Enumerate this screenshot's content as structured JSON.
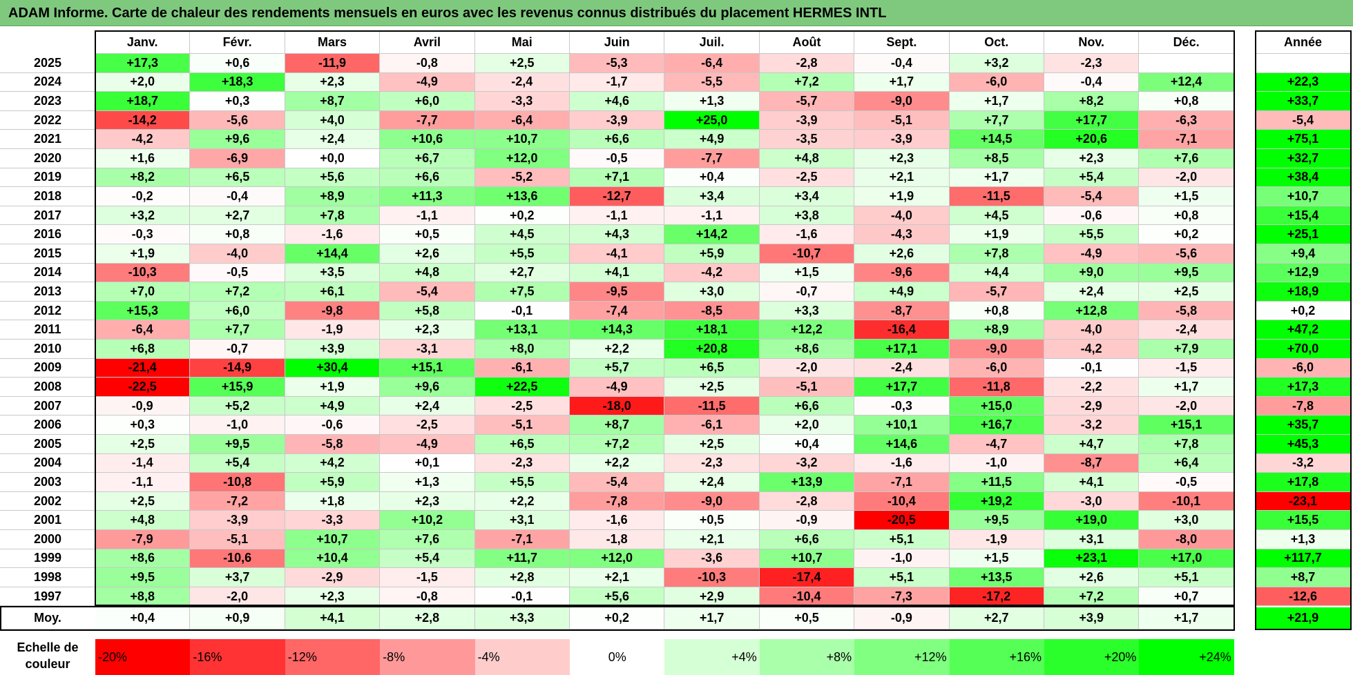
{
  "title": "ADAM Informe. Carte de chaleur des rendements mensuels en euros avec les revenus connus distribués du placement HERMES INTL",
  "chart_data": {
    "type": "heatmap",
    "title": "ADAM Informe. Carte de chaleur des rendements mensuels en euros avec les revenus connus distribués du placement HERMES INTL",
    "months": [
      "Janv.",
      "Févr.",
      "Mars",
      "Avril",
      "Mai",
      "Juin",
      "Juil.",
      "Août",
      "Sept.",
      "Oct.",
      "Nov.",
      "Déc."
    ],
    "year_header": "Année",
    "avg_label": "Moy.",
    "rows": [
      {
        "year": "2025",
        "months": [
          "+17,3",
          "+0,6",
          "-11,9",
          "-0,8",
          "+2,5",
          "-5,3",
          "-6,4",
          "-2,8",
          "-0,4",
          "+3,2",
          "-2,3",
          ""
        ],
        "annual": ""
      },
      {
        "year": "2024",
        "months": [
          "+2,0",
          "+18,3",
          "+2,3",
          "-4,9",
          "-2,4",
          "-1,7",
          "-5,5",
          "+7,2",
          "+1,7",
          "-6,0",
          "-0,4",
          "+12,4"
        ],
        "annual": "+22,3"
      },
      {
        "year": "2023",
        "months": [
          "+18,7",
          "+0,3",
          "+8,7",
          "+6,0",
          "-3,3",
          "+4,6",
          "+1,3",
          "-5,7",
          "-9,0",
          "+1,7",
          "+8,2",
          "+0,8"
        ],
        "annual": "+33,7"
      },
      {
        "year": "2022",
        "months": [
          "-14,2",
          "-5,6",
          "+4,0",
          "-7,7",
          "-6,4",
          "-3,9",
          "+25,0",
          "-3,9",
          "-5,1",
          "+7,7",
          "+17,7",
          "-6,3"
        ],
        "annual": "-5,4"
      },
      {
        "year": "2021",
        "months": [
          "-4,2",
          "+9,6",
          "+2,4",
          "+10,6",
          "+10,7",
          "+6,6",
          "+4,9",
          "-3,5",
          "-3,9",
          "+14,5",
          "+20,6",
          "-7,1"
        ],
        "annual": "+75,1"
      },
      {
        "year": "2020",
        "months": [
          "+1,6",
          "-6,9",
          "+0,0",
          "+6,7",
          "+12,0",
          "-0,5",
          "-7,7",
          "+4,8",
          "+2,3",
          "+8,5",
          "+2,3",
          "+7,6"
        ],
        "annual": "+32,7"
      },
      {
        "year": "2019",
        "months": [
          "+8,2",
          "+6,5",
          "+5,6",
          "+6,6",
          "-5,2",
          "+7,1",
          "+0,4",
          "-2,5",
          "+2,1",
          "+1,7",
          "+5,4",
          "-2,0"
        ],
        "annual": "+38,4"
      },
      {
        "year": "2018",
        "months": [
          "-0,2",
          "-0,4",
          "+8,9",
          "+11,3",
          "+13,6",
          "-12,7",
          "+3,4",
          "+3,4",
          "+1,9",
          "-11,5",
          "-5,4",
          "+1,5"
        ],
        "annual": "+10,7"
      },
      {
        "year": "2017",
        "months": [
          "+3,2",
          "+2,7",
          "+7,8",
          "-1,1",
          "+0,2",
          "-1,1",
          "-1,1",
          "+3,8",
          "-4,0",
          "+4,5",
          "-0,6",
          "+0,8"
        ],
        "annual": "+15,4"
      },
      {
        "year": "2016",
        "months": [
          "-0,3",
          "+0,8",
          "-1,6",
          "+0,5",
          "+4,5",
          "+4,3",
          "+14,2",
          "-1,6",
          "-4,3",
          "+1,9",
          "+5,5",
          "+0,2"
        ],
        "annual": "+25,1"
      },
      {
        "year": "2015",
        "months": [
          "+1,9",
          "-4,0",
          "+14,4",
          "+2,6",
          "+5,5",
          "-4,1",
          "+5,9",
          "-10,7",
          "+2,6",
          "+7,8",
          "-4,9",
          "-5,6"
        ],
        "annual": "+9,4"
      },
      {
        "year": "2014",
        "months": [
          "-10,3",
          "-0,5",
          "+3,5",
          "+4,8",
          "+2,7",
          "+4,1",
          "-4,2",
          "+1,5",
          "-9,6",
          "+4,4",
          "+9,0",
          "+9,5"
        ],
        "annual": "+12,9"
      },
      {
        "year": "2013",
        "months": [
          "+7,0",
          "+7,2",
          "+6,1",
          "-5,4",
          "+7,5",
          "-9,5",
          "+3,0",
          "-0,7",
          "+4,9",
          "-5,7",
          "+2,4",
          "+2,5"
        ],
        "annual": "+18,9"
      },
      {
        "year": "2012",
        "months": [
          "+15,3",
          "+6,0",
          "-9,8",
          "+5,8",
          "-0,1",
          "-7,4",
          "-8,5",
          "+3,3",
          "-8,7",
          "+0,8",
          "+12,8",
          "-5,8"
        ],
        "annual": "+0,2"
      },
      {
        "year": "2011",
        "months": [
          "-6,4",
          "+7,7",
          "-1,9",
          "+2,3",
          "+13,1",
          "+14,3",
          "+18,1",
          "+12,2",
          "-16,4",
          "+8,9",
          "-4,0",
          "-2,4"
        ],
        "annual": "+47,2"
      },
      {
        "year": "2010",
        "months": [
          "+6,8",
          "-0,7",
          "+3,9",
          "-3,1",
          "+8,0",
          "+2,2",
          "+20,8",
          "+8,6",
          "+17,1",
          "-9,0",
          "-4,2",
          "+7,9"
        ],
        "annual": "+70,0"
      },
      {
        "year": "2009",
        "months": [
          "-21,4",
          "-14,9",
          "+30,4",
          "+15,1",
          "-6,1",
          "+5,7",
          "+6,5",
          "-2,0",
          "-2,4",
          "-6,0",
          "-0,1",
          "-1,5"
        ],
        "annual": "-6,0"
      },
      {
        "year": "2008",
        "months": [
          "-22,5",
          "+15,9",
          "+1,9",
          "+9,6",
          "+22,5",
          "-4,9",
          "+2,5",
          "-5,1",
          "+17,7",
          "-11,8",
          "-2,2",
          "+1,7"
        ],
        "annual": "+17,3"
      },
      {
        "year": "2007",
        "months": [
          "-0,9",
          "+5,2",
          "+4,9",
          "+2,4",
          "-2,5",
          "-18,0",
          "-11,5",
          "+6,6",
          "-0,3",
          "+15,0",
          "-2,9",
          "-2,0"
        ],
        "annual": "-7,8"
      },
      {
        "year": "2006",
        "months": [
          "+0,3",
          "-1,0",
          "-0,6",
          "-2,5",
          "-5,1",
          "+8,7",
          "-6,1",
          "+2,0",
          "+10,1",
          "+16,7",
          "-3,2",
          "+15,1"
        ],
        "annual": "+35,7"
      },
      {
        "year": "2005",
        "months": [
          "+2,5",
          "+9,5",
          "-5,8",
          "-4,9",
          "+6,5",
          "+7,2",
          "+2,5",
          "+0,4",
          "+14,6",
          "-4,7",
          "+4,7",
          "+7,8"
        ],
        "annual": "+45,3"
      },
      {
        "year": "2004",
        "months": [
          "-1,4",
          "+5,4",
          "+4,2",
          "+0,1",
          "-2,3",
          "+2,2",
          "-2,3",
          "-3,2",
          "-1,6",
          "-1,0",
          "-8,7",
          "+6,4"
        ],
        "annual": "-3,2"
      },
      {
        "year": "2003",
        "months": [
          "-1,1",
          "-10,8",
          "+5,9",
          "+1,3",
          "+5,5",
          "-5,4",
          "+2,4",
          "+13,9",
          "-7,1",
          "+11,5",
          "+4,1",
          "-0,5"
        ],
        "annual": "+17,8"
      },
      {
        "year": "2002",
        "months": [
          "+2,5",
          "-7,2",
          "+1,8",
          "+2,3",
          "+2,2",
          "-7,8",
          "-9,0",
          "-2,8",
          "-10,4",
          "+19,2",
          "-3,0",
          "-10,1"
        ],
        "annual": "-23,1"
      },
      {
        "year": "2001",
        "months": [
          "+4,8",
          "-3,9",
          "-3,3",
          "+10,2",
          "+3,1",
          "-1,6",
          "+0,5",
          "-0,9",
          "-20,5",
          "+9,5",
          "+19,0",
          "+3,0"
        ],
        "annual": "+15,5"
      },
      {
        "year": "2000",
        "months": [
          "-7,9",
          "-5,1",
          "+10,7",
          "+7,6",
          "-7,1",
          "-1,8",
          "+2,1",
          "+6,6",
          "+5,1",
          "-1,9",
          "+3,1",
          "-8,0"
        ],
        "annual": "+1,3"
      },
      {
        "year": "1999",
        "months": [
          "+8,6",
          "-10,6",
          "+10,4",
          "+5,4",
          "+11,7",
          "+12,0",
          "-3,6",
          "+10,7",
          "-1,0",
          "+1,5",
          "+23,1",
          "+17,0"
        ],
        "annual": "+117,7"
      },
      {
        "year": "1998",
        "months": [
          "+9,5",
          "+3,7",
          "-2,9",
          "-1,5",
          "+2,8",
          "+2,1",
          "-10,3",
          "-17,4",
          "+5,1",
          "+13,5",
          "+2,6",
          "+5,1"
        ],
        "annual": "+8,7"
      },
      {
        "year": "1997",
        "months": [
          "+8,8",
          "-2,0",
          "+2,3",
          "-0,8",
          "-0,1",
          "+5,6",
          "+2,9",
          "-10,4",
          "-7,3",
          "-17,2",
          "+7,2",
          "+0,7"
        ],
        "annual": "-12,6"
      }
    ],
    "average": {
      "months": [
        "+0,4",
        "+0,9",
        "+4,1",
        "+2,8",
        "+3,3",
        "+0,2",
        "+1,7",
        "+0,5",
        "-0,9",
        "+2,7",
        "+3,9",
        "+1,7"
      ],
      "annual": "+21,9"
    },
    "scale_label": "Echelle de couleur",
    "scale": [
      {
        "label": "-20%",
        "value": -20
      },
      {
        "label": "-16%",
        "value": -16
      },
      {
        "label": "-12%",
        "value": -12
      },
      {
        "label": "-8%",
        "value": -8
      },
      {
        "label": "-4%",
        "value": -4
      },
      {
        "label": "0%",
        "value": 0
      },
      {
        "label": "+4%",
        "value": 4
      },
      {
        "label": "+8%",
        "value": 8
      },
      {
        "label": "+12%",
        "value": 12
      },
      {
        "label": "+16%",
        "value": 16
      },
      {
        "label": "+20%",
        "value": 20
      },
      {
        "label": "+24%",
        "value": 24
      }
    ],
    "colors": {
      "negative": "#ff0000",
      "neutral": "#ffffff",
      "positive": "#00ff00"
    }
  }
}
